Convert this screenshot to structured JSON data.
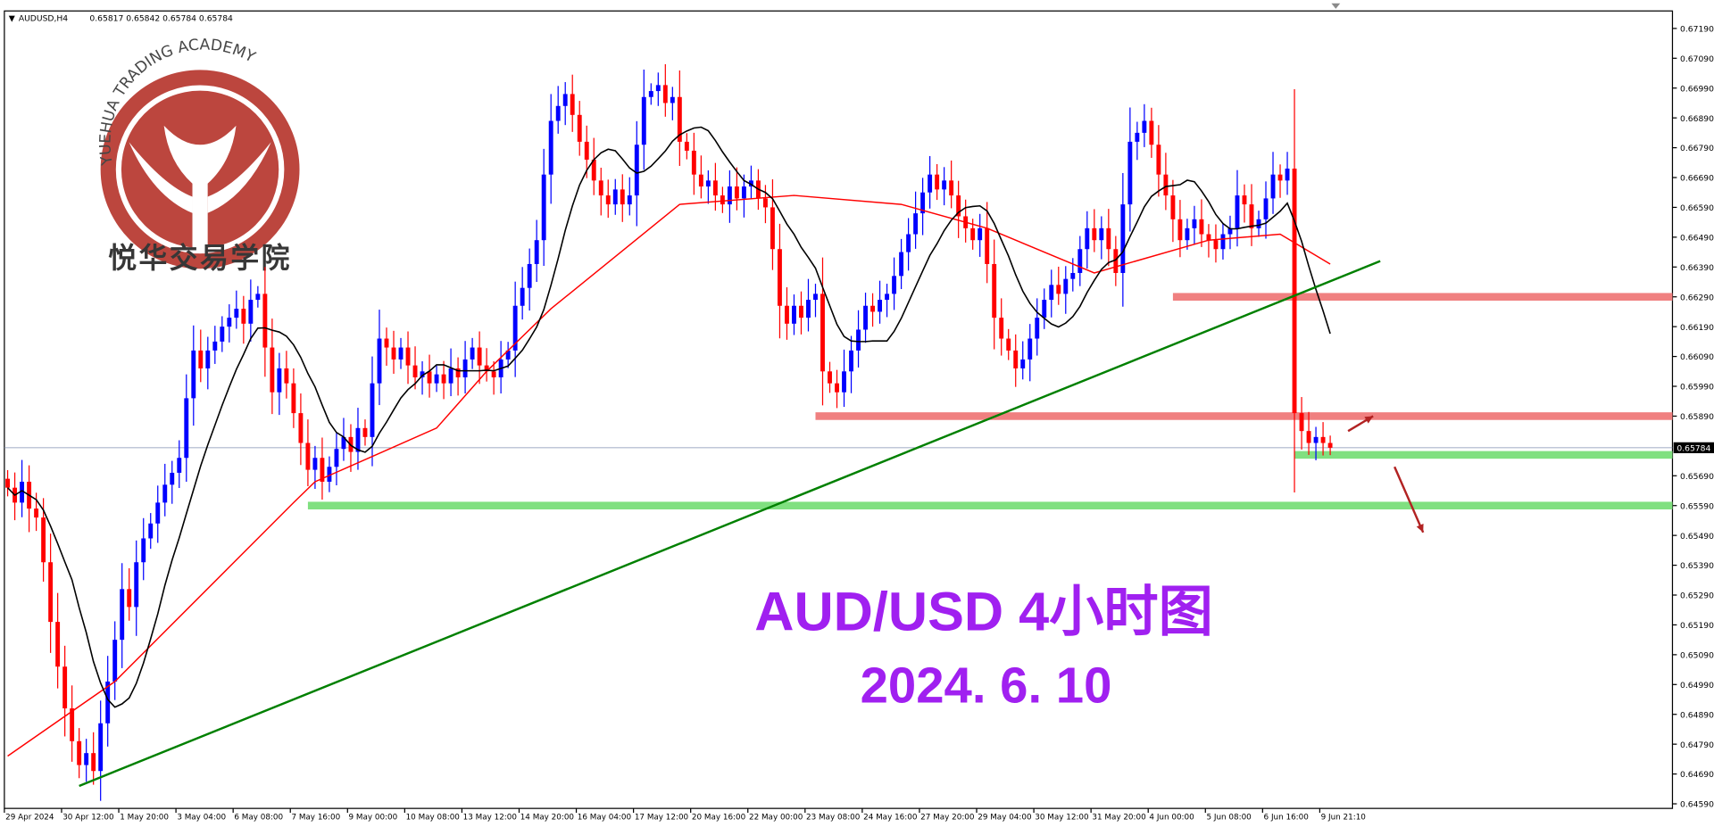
{
  "header": {
    "symbol": "AUDUSD,H4",
    "ohlc": "0.65817 0.65842 0.65784 0.65784"
  },
  "logo": {
    "arc_text": "YUEHUA TRADING ACADEMY",
    "cn_text": "悦华交易学院",
    "color": "#b5322a"
  },
  "annotation": {
    "title": "AUD/USD  4小时图",
    "date": "2024. 6. 10",
    "color": "#a020f0"
  },
  "current_price": "0.65784",
  "chart_data": {
    "type": "candlestick",
    "ylim": [
      0.6454,
      0.6724
    ],
    "y_ticks": [
      "0.67190",
      "0.67090",
      "0.66990",
      "0.66890",
      "0.66790",
      "0.66690",
      "0.66590",
      "0.66490",
      "0.66390",
      "0.66290",
      "0.66190",
      "0.66090",
      "0.65990",
      "0.65890",
      "0.65690",
      "0.65590",
      "0.65490",
      "0.65390",
      "0.65290",
      "0.65190",
      "0.65090",
      "0.64990",
      "0.64890",
      "0.64790",
      "0.64690",
      "0.64590"
    ],
    "x_ticks": [
      {
        "i": 0,
        "label": "29 Apr 2024"
      },
      {
        "i": 8,
        "label": "30 Apr 12:00"
      },
      {
        "i": 16,
        "label": "1 May 20:00"
      },
      {
        "i": 24,
        "label": "3 May 04:00"
      },
      {
        "i": 32,
        "label": "6 May 08:00"
      },
      {
        "i": 40,
        "label": "7 May 16:00"
      },
      {
        "i": 48,
        "label": "9 May 00:00"
      },
      {
        "i": 56,
        "label": "10 May 08:00"
      },
      {
        "i": 64,
        "label": "13 May 12:00"
      },
      {
        "i": 72,
        "label": "14 May 20:00"
      },
      {
        "i": 80,
        "label": "16 May 04:00"
      },
      {
        "i": 88,
        "label": "17 May 12:00"
      },
      {
        "i": 96,
        "label": "20 May 16:00"
      },
      {
        "i": 104,
        "label": "22 May 00:00"
      },
      {
        "i": 112,
        "label": "23 May 08:00"
      },
      {
        "i": 120,
        "label": "24 May 16:00"
      },
      {
        "i": 128,
        "label": "27 May 20:00"
      },
      {
        "i": 136,
        "label": "29 May 04:00"
      },
      {
        "i": 144,
        "label": "30 May 12:00"
      },
      {
        "i": 152,
        "label": "31 May 20:00"
      },
      {
        "i": 160,
        "label": "4 Jun 00:00"
      },
      {
        "i": 168,
        "label": "5 Jun 08:00"
      },
      {
        "i": 176,
        "label": "6 Jun 16:00"
      },
      {
        "i": 184,
        "label": "9 Jun 21:10"
      }
    ],
    "bull_color": "#0000ff",
    "bear_color": "#ff0000",
    "closes": [
      0.6565,
      0.656,
      0.6567,
      0.6558,
      0.6555,
      0.654,
      0.652,
      0.6505,
      0.6491,
      0.648,
      0.6472,
      0.6476,
      0.647,
      0.6486,
      0.65,
      0.6514,
      0.6531,
      0.6525,
      0.654,
      0.6548,
      0.6553,
      0.656,
      0.6566,
      0.657,
      0.6575,
      0.6595,
      0.6611,
      0.6605,
      0.6611,
      0.6614,
      0.6619,
      0.6622,
      0.6625,
      0.662,
      0.6628,
      0.663,
      0.6612,
      0.6597,
      0.6605,
      0.66,
      0.659,
      0.658,
      0.6571,
      0.6575,
      0.6567,
      0.6572,
      0.6578,
      0.6582,
      0.6577,
      0.6585,
      0.6582,
      0.66,
      0.6615,
      0.6612,
      0.6608,
      0.6612,
      0.6606,
      0.6602,
      0.6604,
      0.66,
      0.6603,
      0.66,
      0.6605,
      0.6602,
      0.6608,
      0.6612,
      0.6606,
      0.6604,
      0.6602,
      0.6608,
      0.6611,
      0.6626,
      0.6632,
      0.664,
      0.6648,
      0.667,
      0.6688,
      0.6693,
      0.6697,
      0.669,
      0.6681,
      0.6675,
      0.6668,
      0.6663,
      0.666,
      0.6665,
      0.666,
      0.6663,
      0.668,
      0.6696,
      0.6698,
      0.67,
      0.6694,
      0.6696,
      0.6681,
      0.6678,
      0.667,
      0.6666,
      0.6668,
      0.6663,
      0.666,
      0.6666,
      0.6662,
      0.6666,
      0.6668,
      0.6662,
      0.6659,
      0.6645,
      0.6626,
      0.662,
      0.6626,
      0.6622,
      0.6628,
      0.663,
      0.6604,
      0.66,
      0.6597,
      0.6604,
      0.6611,
      0.6618,
      0.6626,
      0.6624,
      0.6628,
      0.663,
      0.6636,
      0.6644,
      0.665,
      0.6657,
      0.6664,
      0.667,
      0.6665,
      0.6668,
      0.6663,
      0.6656,
      0.6652,
      0.6648,
      0.6652,
      0.664,
      0.6622,
      0.6615,
      0.6611,
      0.6605,
      0.6608,
      0.6615,
      0.6622,
      0.6628,
      0.6633,
      0.663,
      0.6635,
      0.6637,
      0.6645,
      0.6652,
      0.6648,
      0.6652,
      0.6645,
      0.6637,
      0.666,
      0.6681,
      0.6684,
      0.6688,
      0.668,
      0.667,
      0.6663,
      0.6655,
      0.6648,
      0.6652,
      0.6655,
      0.665,
      0.6648,
      0.6645,
      0.665,
      0.6652,
      0.6663,
      0.666,
      0.6652,
      0.6655,
      0.6662,
      0.667,
      0.6668,
      0.6672,
      0.659,
      0.6584,
      0.658,
      0.6582,
      0.658,
      0.65784
    ],
    "ma_fast": {
      "period": 10,
      "color": "#000000"
    },
    "ma_slow": {
      "color": "#ff0000",
      "points": [
        [
          0,
          0.6475
        ],
        [
          15,
          0.65
        ],
        [
          40,
          0.656
        ],
        [
          43,
          0.6567
        ],
        [
          60,
          0.6585
        ],
        [
          67,
          0.6604
        ],
        [
          76,
          0.6625
        ],
        [
          94,
          0.666
        ],
        [
          110,
          0.6663
        ],
        [
          125,
          0.666
        ],
        [
          137,
          0.6652
        ],
        [
          152,
          0.6637
        ],
        [
          168,
          0.6648
        ],
        [
          178,
          0.665
        ],
        [
          185,
          0.664
        ]
      ]
    },
    "trendline": {
      "color": "#008000",
      "from": [
        10,
        0.6465
      ],
      "to": [
        192,
        0.6641
      ]
    },
    "zones": [
      {
        "color": "#f08080",
        "price": 0.6629,
        "from_i": 163
      },
      {
        "color": "#f08080",
        "price": 0.6589,
        "from_i": 113
      },
      {
        "color": "#80e080",
        "price": 0.6576,
        "from_i": 180
      },
      {
        "color": "#80e080",
        "price": 0.6559,
        "from_i": 42
      }
    ],
    "arrows": [
      {
        "color": "#b22222",
        "direction": "up",
        "from": [
          187.5,
          0.6584
        ],
        "to": [
          191,
          0.6589
        ]
      },
      {
        "color": "#b22222",
        "direction": "down",
        "from": [
          194,
          0.6572
        ],
        "to": [
          198,
          0.655
        ]
      }
    ]
  }
}
